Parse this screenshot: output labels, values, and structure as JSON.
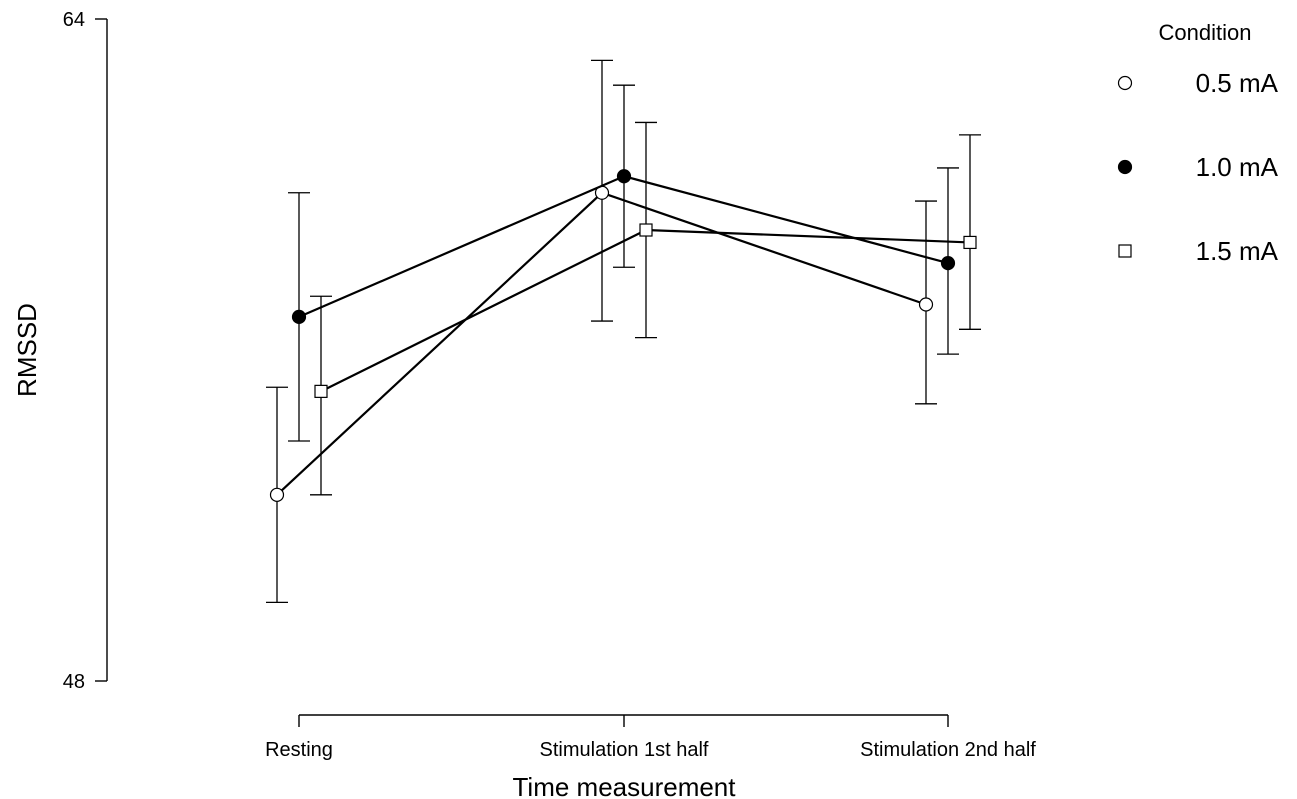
{
  "chart_data": {
    "type": "line",
    "xlabel": "Time measurement",
    "ylabel": "RMSSD",
    "ylim": [
      48,
      64
    ],
    "yticks": [
      48,
      64
    ],
    "categories": [
      "Resting",
      "Stimulation 1st half",
      "Stimulation 2nd half"
    ],
    "legend_title": "Condition",
    "legend_position": "top-right",
    "grid": false,
    "series": [
      {
        "name": "0.5 mA",
        "marker": "circle-open",
        "values": [
          52.5,
          59.8,
          57.1
        ],
        "error_low": [
          49.9,
          56.7,
          54.7
        ],
        "error_high": [
          55.1,
          63.0,
          59.6
        ]
      },
      {
        "name": "1.0 mA",
        "marker": "circle-filled",
        "values": [
          56.8,
          60.2,
          58.1
        ],
        "error_low": [
          53.8,
          58.0,
          55.9
        ],
        "error_high": [
          59.8,
          62.4,
          60.4
        ]
      },
      {
        "name": "1.5 mA",
        "marker": "square-open",
        "values": [
          55.0,
          58.9,
          58.6
        ],
        "error_low": [
          52.5,
          56.3,
          56.5
        ],
        "error_high": [
          57.3,
          61.5,
          61.2
        ]
      }
    ]
  }
}
